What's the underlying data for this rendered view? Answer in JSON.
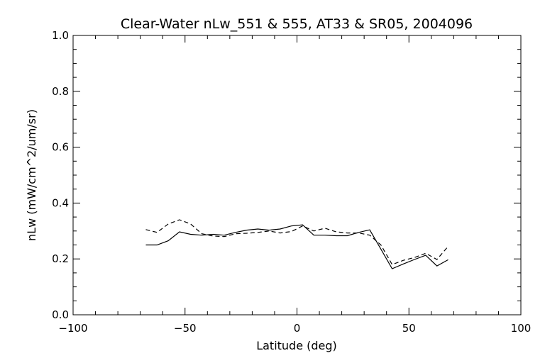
{
  "chart_data": {
    "type": "line",
    "title": "Clear-Water nLw_551 & 555, AT33 & SR05, 2004096",
    "xlabel": "Latitude (deg)",
    "ylabel": "nLw (mW/cm^2/um/sr)",
    "xlim": [
      -100,
      100
    ],
    "ylim": [
      0.0,
      1.0
    ],
    "xticks": [
      -100,
      -50,
      0,
      50,
      100
    ],
    "xtick_labels": [
      "−100",
      "−50",
      "0",
      "50",
      "100"
    ],
    "yticks": [
      0.0,
      0.2,
      0.4,
      0.6,
      0.8,
      1.0
    ],
    "ytick_labels": [
      "0.0",
      "0.2",
      "0.4",
      "0.6",
      "0.8",
      "1.0"
    ],
    "grid": false,
    "series": [
      {
        "style": "solid",
        "x": [
          -67.5,
          -62.5,
          -57.5,
          -52.5,
          -47.5,
          -42.5,
          -37.5,
          -32.5,
          -27.5,
          -22.5,
          -17.5,
          -12.5,
          -7.5,
          -2.5,
          2.5,
          7.5,
          12.5,
          17.5,
          22.5,
          27.5,
          32.5,
          37.5,
          42.5,
          47.5,
          52.5,
          57.5,
          62.5,
          67.5
        ],
        "y": [
          0.25,
          0.25,
          0.265,
          0.297,
          0.288,
          0.285,
          0.288,
          0.285,
          0.295,
          0.303,
          0.307,
          0.303,
          0.307,
          0.318,
          0.322,
          0.285,
          0.285,
          0.283,
          0.283,
          0.295,
          0.304,
          0.235,
          0.165,
          0.182,
          0.198,
          0.213,
          0.175,
          0.197
        ]
      },
      {
        "style": "dashed",
        "x": [
          -67.5,
          -62.5,
          -57.5,
          -52.5,
          -47.5,
          -42.5,
          -37.5,
          -32.5,
          -27.5,
          -22.5,
          -17.5,
          -12.5,
          -7.5,
          -2.5,
          2.5,
          7.5,
          12.5,
          17.5,
          22.5,
          27.5,
          32.5,
          37.5,
          42.5,
          47.5,
          52.5,
          57.5,
          62.5,
          67.5
        ],
        "y": [
          0.305,
          0.295,
          0.325,
          0.34,
          0.325,
          0.29,
          0.282,
          0.28,
          0.29,
          0.292,
          0.295,
          0.3,
          0.293,
          0.298,
          0.318,
          0.3,
          0.31,
          0.297,
          0.293,
          0.293,
          0.285,
          0.25,
          0.18,
          0.195,
          0.205,
          0.22,
          0.198,
          0.245
        ]
      }
    ]
  }
}
